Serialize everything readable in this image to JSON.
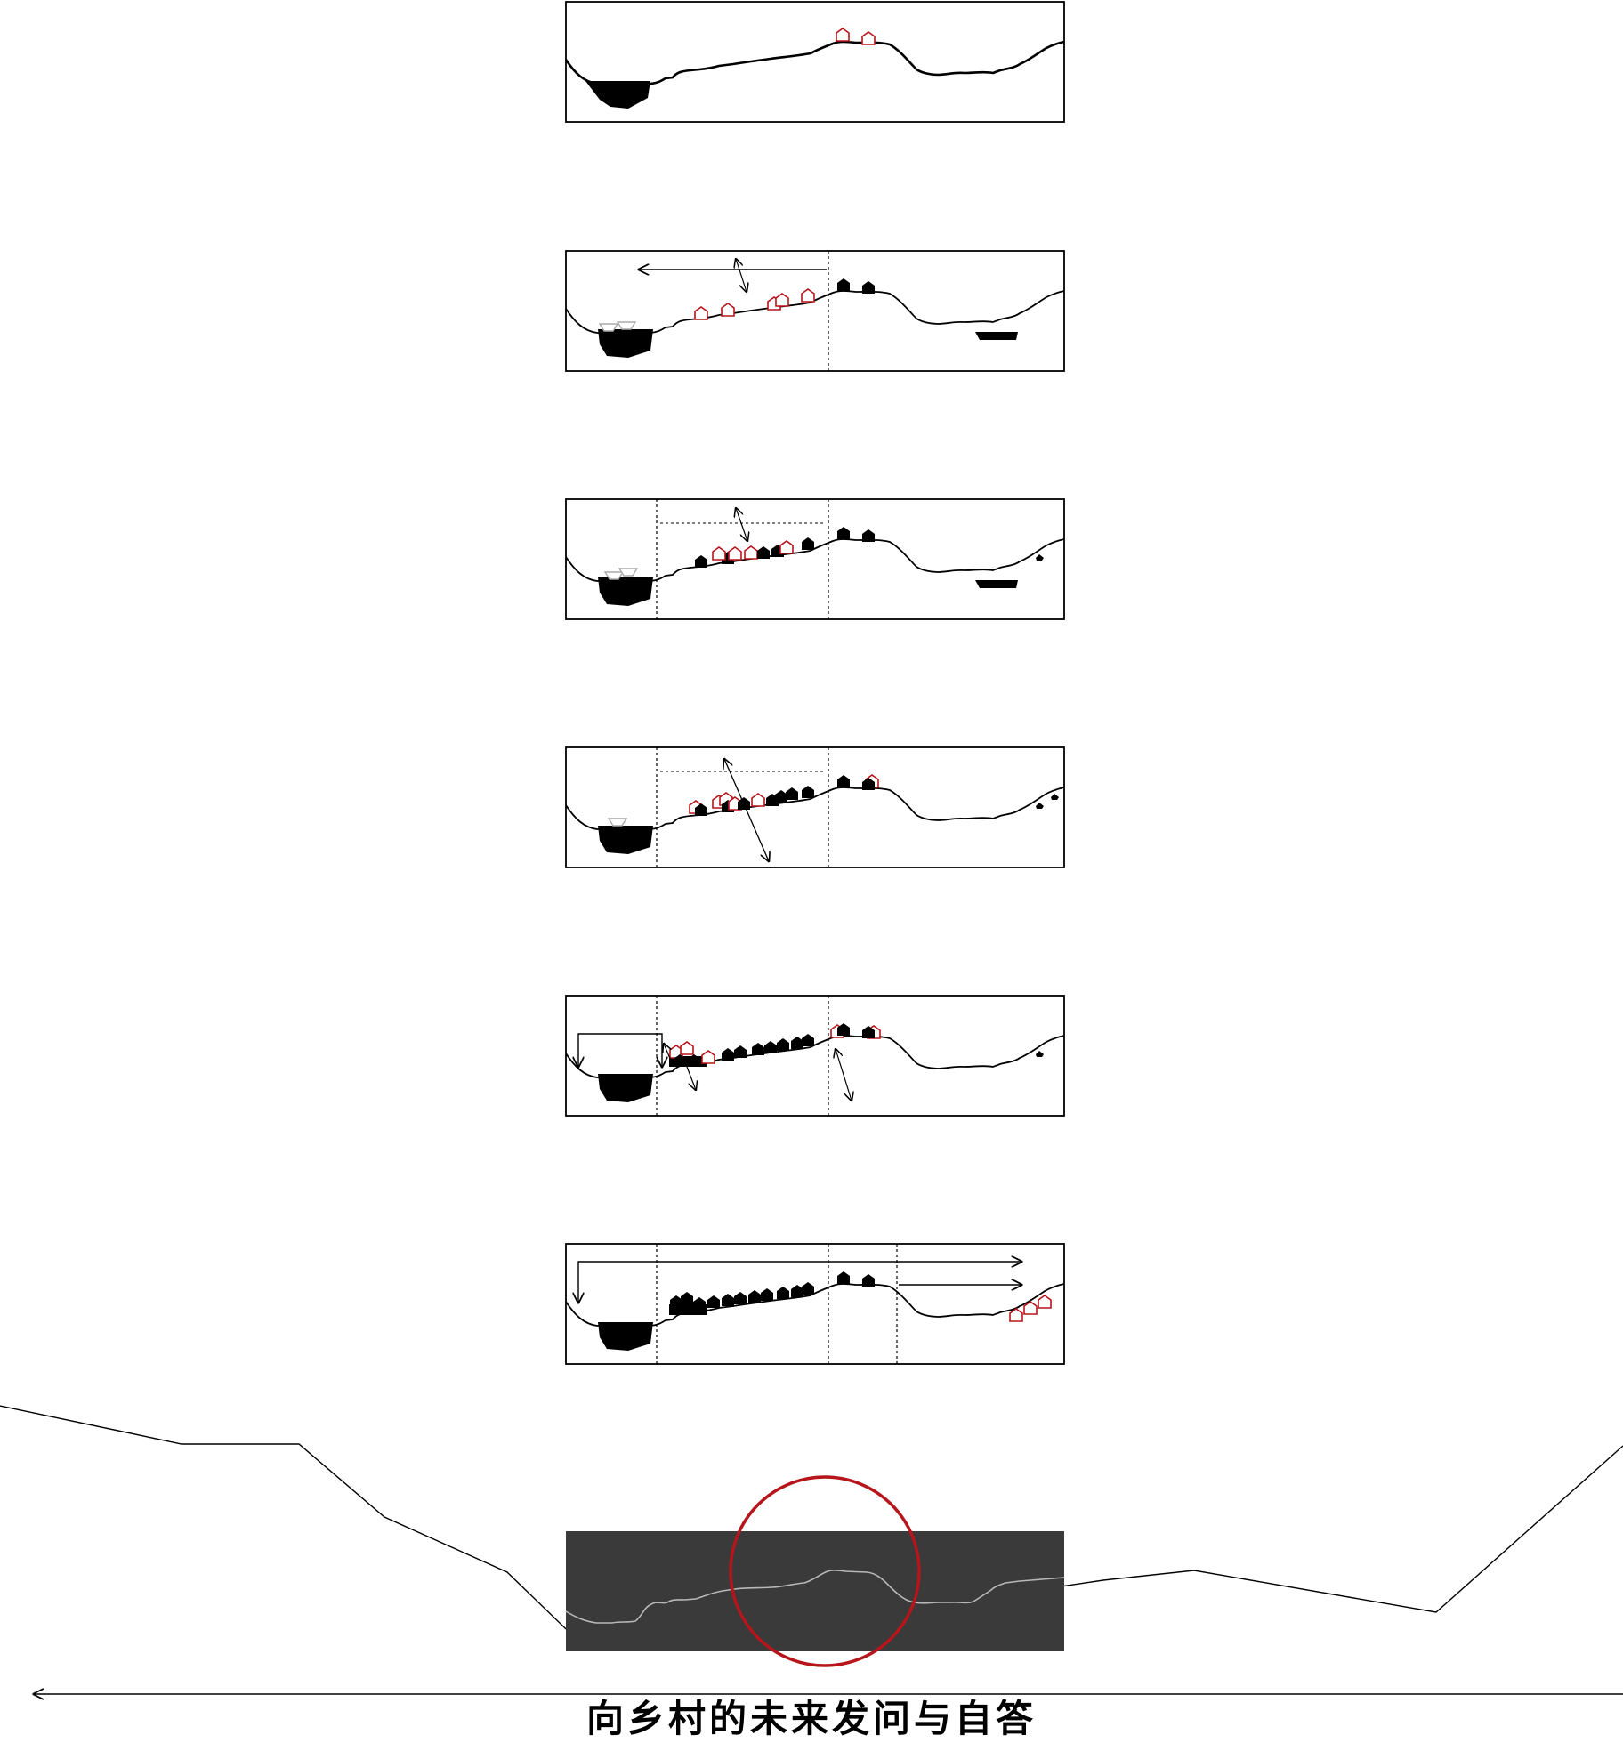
{
  "caption": "向乡村的未来发问与自答",
  "colors": {
    "ink": "#000000",
    "accent_red": "#b5151b",
    "grey_boat": "#aaaaaa",
    "dark_panel": "#3a3a3a",
    "panel_line": "#b8b8b8"
  },
  "icons": {
    "house_filled": "house-filled-icon",
    "house_outline": "house-outline-icon",
    "boat": "boat-icon",
    "arrow": "arrow-icon",
    "magnifier_circle": "focus-circle-icon"
  },
  "stages": [
    {
      "name": "stage-1"
    },
    {
      "name": "stage-2"
    },
    {
      "name": "stage-3"
    },
    {
      "name": "stage-4"
    },
    {
      "name": "stage-5"
    },
    {
      "name": "stage-6"
    }
  ]
}
